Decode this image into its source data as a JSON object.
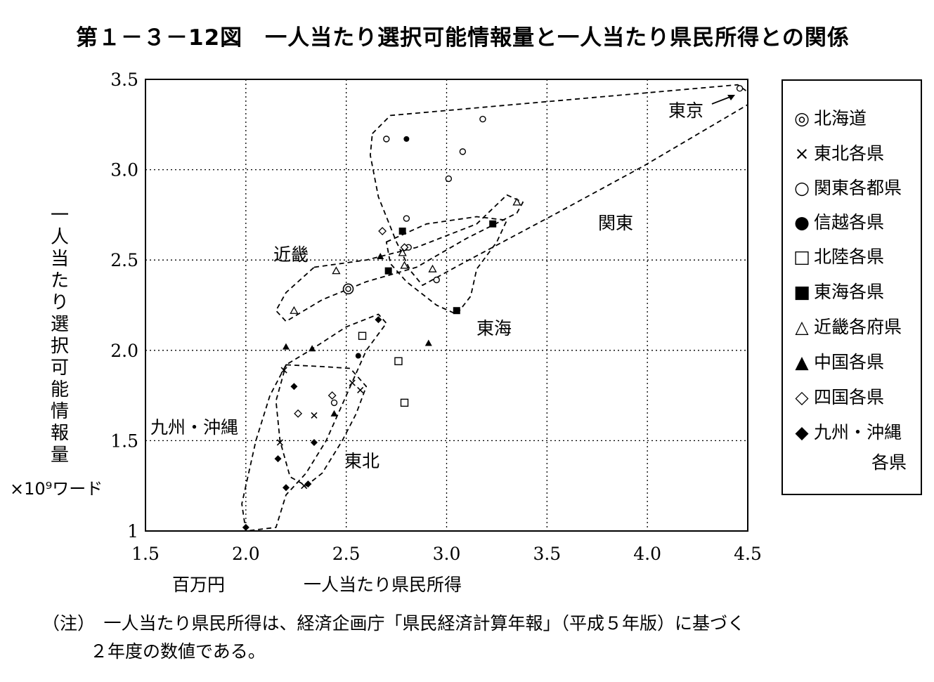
{
  "title": "第１－３－12図　一人当たり選択可能情報量と一人当たり県民所得との関係",
  "chart_data": {
    "type": "scatter",
    "xlabel": "一人当たり県民所得",
    "xunit": "百万円",
    "ylabel": "一人当たり選択可能情報量",
    "yunit": "×10⁹ワード",
    "xlim": [
      1.5,
      4.5
    ],
    "ylim": [
      1,
      3.5
    ],
    "xticks": [
      "1.5",
      "2.0",
      "2.5",
      "3.0",
      "3.5",
      "4.0",
      "4.5"
    ],
    "yticks": [
      "1",
      "1.5",
      "2.0",
      "2.5",
      "3.0",
      "3.5"
    ],
    "grid": true,
    "legend_position": "right",
    "series": [
      {
        "name": "北海道",
        "symbol": "double-circle",
        "points": [
          [
            2.51,
            2.34
          ]
        ]
      },
      {
        "name": "東北各県",
        "symbol": "cross",
        "points": [
          [
            2.17,
            1.49
          ],
          [
            2.19,
            1.89
          ],
          [
            2.34,
            1.64
          ],
          [
            2.53,
            1.82
          ],
          [
            2.57,
            1.78
          ],
          [
            2.29,
            1.25
          ]
        ]
      },
      {
        "name": "関東各都県",
        "symbol": "circle",
        "points": [
          [
            2.44,
            1.71
          ],
          [
            2.7,
            3.17
          ],
          [
            3.18,
            3.28
          ],
          [
            3.08,
            3.1
          ],
          [
            3.01,
            2.95
          ],
          [
            2.8,
            2.73
          ],
          [
            2.81,
            2.57
          ],
          [
            2.95,
            2.39
          ],
          [
            4.46,
            3.45
          ]
        ]
      },
      {
        "name": "信越各県",
        "symbol": "filled-circle",
        "points": [
          [
            2.8,
            3.17
          ],
          [
            2.56,
            1.97
          ]
        ]
      },
      {
        "name": "北陸各県",
        "symbol": "square",
        "points": [
          [
            2.58,
            2.08
          ],
          [
            2.76,
            1.94
          ],
          [
            2.79,
            1.71
          ]
        ]
      },
      {
        "name": "東海各県",
        "symbol": "filled-square",
        "points": [
          [
            2.71,
            2.44
          ],
          [
            2.78,
            2.66
          ],
          [
            3.23,
            2.7
          ],
          [
            3.05,
            2.22
          ]
        ]
      },
      {
        "name": "近畿各府県",
        "symbol": "triangle",
        "points": [
          [
            2.24,
            2.22
          ],
          [
            2.45,
            2.44
          ],
          [
            2.79,
            2.47
          ],
          [
            2.93,
            2.45
          ],
          [
            3.35,
            2.82
          ],
          [
            2.78,
            2.54
          ]
        ]
      },
      {
        "name": "中国各県",
        "symbol": "filled-triangle",
        "points": [
          [
            2.2,
            2.02
          ],
          [
            2.33,
            2.01
          ],
          [
            2.44,
            1.65
          ],
          [
            2.67,
            2.52
          ],
          [
            2.91,
            2.04
          ]
        ]
      },
      {
        "name": "四国各県",
        "symbol": "diamond",
        "points": [
          [
            2.26,
            1.65
          ],
          [
            2.43,
            1.75
          ],
          [
            2.68,
            2.66
          ],
          [
            2.79,
            2.57
          ]
        ]
      },
      {
        "name": "九州・沖縄各県",
        "symbol": "filled-diamond",
        "points": [
          [
            2.24,
            1.8
          ],
          [
            2.16,
            1.4
          ],
          [
            2.2,
            1.24
          ],
          [
            2.34,
            1.49
          ],
          [
            2.31,
            1.26
          ],
          [
            2.66,
            2.17
          ],
          [
            2.0,
            1.02
          ]
        ]
      }
    ],
    "region_labels": [
      "東京",
      "関東",
      "近畿",
      "東海",
      "九州・沖縄",
      "東北"
    ]
  },
  "legend": {
    "items": [
      {
        "symbol": "◎",
        "label": "北海道"
      },
      {
        "symbol": "×",
        "label": "東北各県"
      },
      {
        "symbol": "○",
        "label": "関東各都県"
      },
      {
        "symbol": "●",
        "label": "信越各県"
      },
      {
        "symbol": "□",
        "label": "北陸各県"
      },
      {
        "symbol": "■",
        "label": "東海各県"
      },
      {
        "symbol": "△",
        "label": "近畿各府県"
      },
      {
        "symbol": "▲",
        "label": "中国各県"
      },
      {
        "symbol": "◇",
        "label": "四国各県"
      },
      {
        "symbol": "◆",
        "label": "九州・沖縄"
      }
    ],
    "continuation": "各県"
  },
  "note": {
    "line1": "（注）　一人当たり県民所得は、経済企画庁「県民経済計算年報」（平成５年版）に基づく",
    "line2": "２年度の数値である。"
  }
}
